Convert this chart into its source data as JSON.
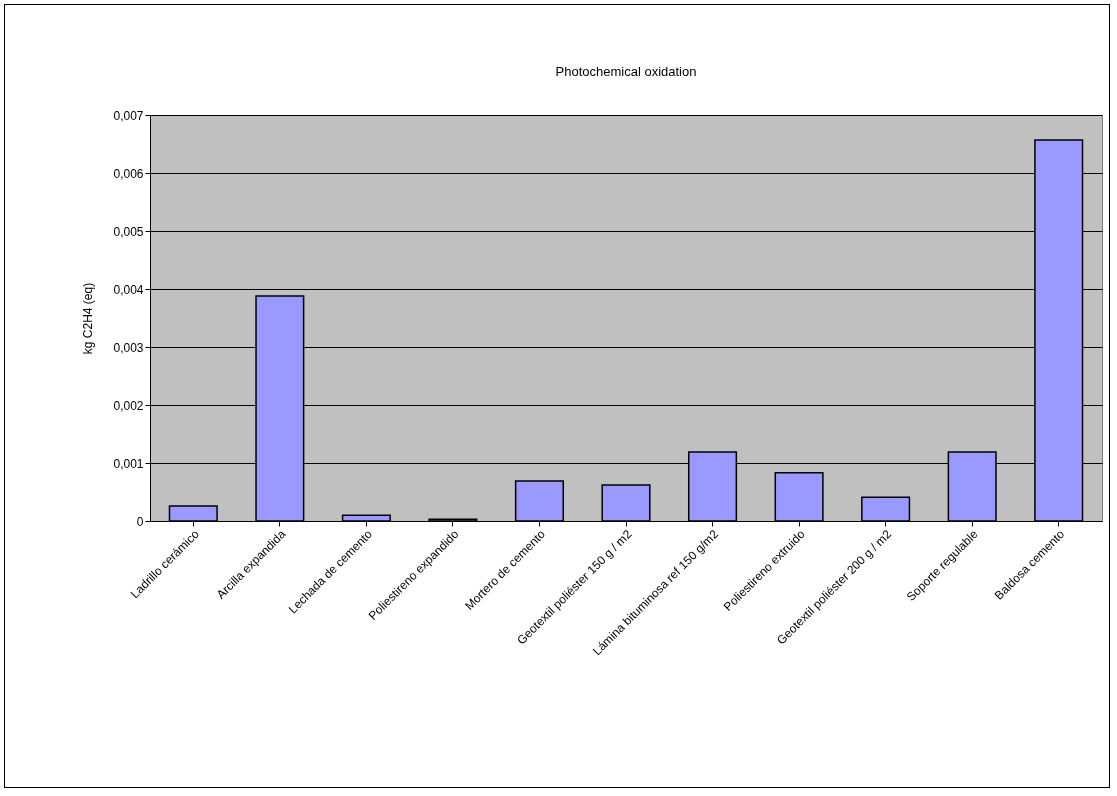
{
  "chart_data": {
    "type": "bar",
    "title": "Photochemical oxidation",
    "ylabel": "kg C2H4 (eq)",
    "categories": [
      "Ladrillo cerámico",
      "Arcilla expandida",
      "Lechada de cemento",
      "Poliestireno expandido",
      "Mortero de cemento",
      "Geotextil  poliéster 150 g / m2",
      "Lámina bituminosa ref 150 g/m2",
      "Poliestireno extruido",
      "Geotextil  poliéster 200 g / m2",
      "Soporte regulable",
      "Baldosa cemento"
    ],
    "values": [
      0.00026,
      0.00388,
      0.0001,
      3e-05,
      0.00069,
      0.00062,
      0.00119,
      0.00083,
      0.00041,
      0.00119,
      0.00657
    ],
    "color": "#9999ff",
    "ylim": [
      0,
      0.007
    ],
    "yticks": [
      {
        "value": 0,
        "label": "0"
      },
      {
        "value": 0.001,
        "label": "0,001"
      },
      {
        "value": 0.002,
        "label": "0,002"
      },
      {
        "value": 0.003,
        "label": "0,003"
      },
      {
        "value": 0.004,
        "label": "0,004"
      },
      {
        "value": 0.005,
        "label": "0,005"
      },
      {
        "value": 0.006,
        "label": "0,006"
      },
      {
        "value": 0.007,
        "label": "0,007"
      }
    ],
    "grid": "y"
  }
}
